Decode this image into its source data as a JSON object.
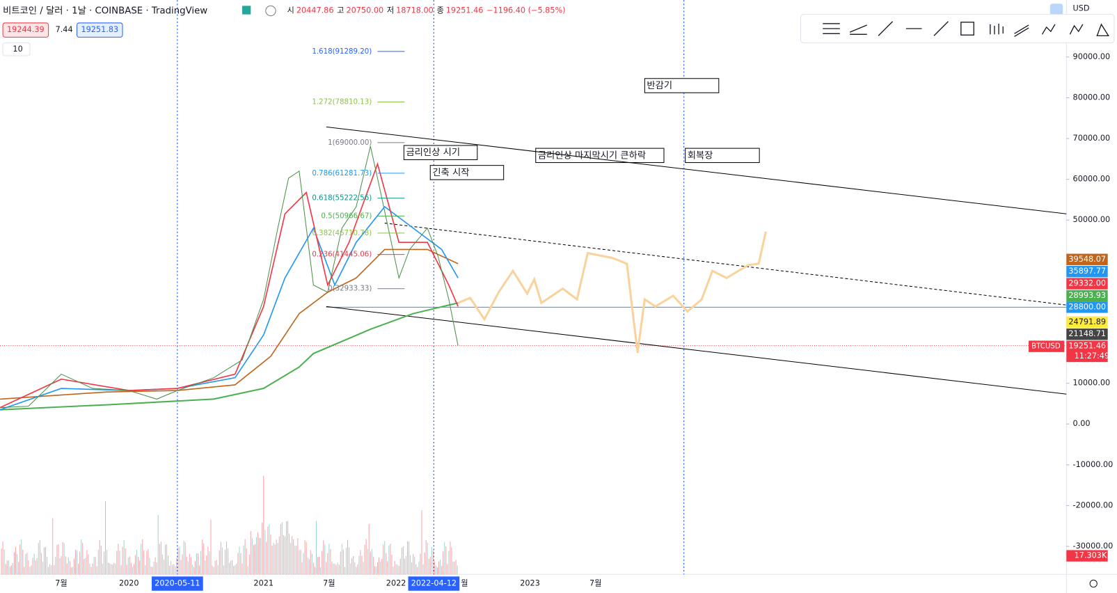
{
  "header": {
    "symbol": "비트코인 / 달러 · 1날 · COINBASE · TradingView",
    "ohlc": [
      "시",
      "20447.86",
      "고",
      "20750.00",
      "저",
      "18718.00",
      "종",
      "19251.46"
    ],
    "change": "−1196.40 (−5.85%)",
    "bid": "19244.39",
    "spread": "7.44",
    "ask": "19251.83",
    "indicator": "10",
    "currency": "USD"
  },
  "price_axis": {
    "ticks": [
      {
        "value": 90000,
        "label": "90000.00"
      },
      {
        "value": 80000,
        "label": "80000.00"
      },
      {
        "value": 70000,
        "label": "70000.00"
      },
      {
        "value": 60000,
        "label": "60000.00"
      },
      {
        "value": 50000,
        "label": "50000.00"
      },
      {
        "value": 10000,
        "label": "10000.00"
      },
      {
        "value": 0,
        "label": "0.00"
      },
      {
        "value": -10000,
        "label": "-10000.00"
      },
      {
        "value": -20000,
        "label": "-20000.00"
      },
      {
        "value": -30000,
        "label": "-30000.00"
      }
    ],
    "tags": [
      {
        "label": "39548.07",
        "color": "#c0651b"
      },
      {
        "label": "35897.77",
        "color": "#2196f3"
      },
      {
        "label": "29332.00",
        "color": "#f23645"
      },
      {
        "label": "28993.93",
        "color": "#4caf50"
      },
      {
        "label": "28800.00",
        "color": "#2196f3"
      },
      {
        "label": "24791.89",
        "color": "#ffeb3b"
      },
      {
        "label": "21148.71",
        "color": "#444444"
      }
    ],
    "last": {
      "symbol": "BTCUSD",
      "price": "19251.46",
      "countdown": "11:27:49"
    },
    "volume": "17.303K"
  },
  "time_axis": {
    "labels": [
      "7월",
      "2020",
      "2021",
      "7월",
      "2022",
      "2023",
      "7월",
      "월"
    ],
    "highlights": [
      "2020-05-11",
      "2022-04-12"
    ]
  },
  "fib": [
    "1.618(91289.20)",
    "1.272(78810.13)",
    "1(69000.00)",
    "0.786(61281.73)",
    "0.618(55222.56)",
    "0.5(50966.67)",
    "0.382(46710.78)",
    "0.236(41445.06)",
    "0(32933.33)"
  ],
  "annotations": [
    "반감기",
    "금리인상 시기",
    "긴축 시작",
    "금리인상 마지막시기 큰하락",
    "회복장"
  ]
}
